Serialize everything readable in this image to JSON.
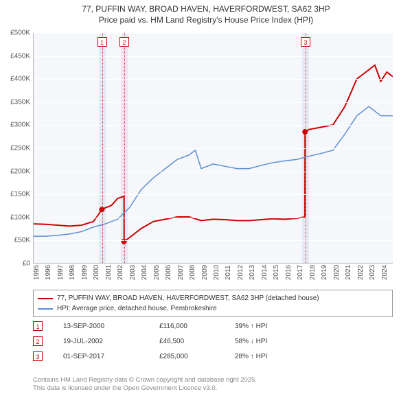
{
  "title": {
    "line1": "77, PUFFIN WAY, BROAD HAVEN, HAVERFORDWEST, SA62 3HP",
    "line2": "Price paid vs. HM Land Registry's House Price Index (HPI)"
  },
  "chart": {
    "type": "line",
    "background_color": "#f6f7fb",
    "grid_color": "#ffffff",
    "axis_color": "#bbbbbb",
    "xlim": [
      1995,
      2025
    ],
    "ylim": [
      0,
      500000
    ],
    "ytick_step": 50000,
    "yticks": [
      {
        "v": 0,
        "label": "£0"
      },
      {
        "v": 50000,
        "label": "£50K"
      },
      {
        "v": 100000,
        "label": "£100K"
      },
      {
        "v": 150000,
        "label": "£150K"
      },
      {
        "v": 200000,
        "label": "£200K"
      },
      {
        "v": 250000,
        "label": "£250K"
      },
      {
        "v": 300000,
        "label": "£300K"
      },
      {
        "v": 350000,
        "label": "£350K"
      },
      {
        "v": 400000,
        "label": "£400K"
      },
      {
        "v": 450000,
        "label": "£450K"
      },
      {
        "v": 500000,
        "label": "£500K"
      }
    ],
    "xticks": [
      1995,
      1996,
      1997,
      1998,
      1999,
      2000,
      2001,
      2002,
      2003,
      2004,
      2005,
      2006,
      2007,
      2008,
      2009,
      2010,
      2011,
      2012,
      2013,
      2014,
      2015,
      2016,
      2017,
      2018,
      2019,
      2020,
      2021,
      2022,
      2023,
      2024
    ],
    "series": [
      {
        "name": "property",
        "label": "77, PUFFIN WAY, BROAD HAVEN, HAVERFORDWEST, SA62 3HP (detached house)",
        "color": "#cc0000",
        "line_width": 2,
        "points": [
          [
            1995,
            85000
          ],
          [
            1996,
            84000
          ],
          [
            1997,
            82000
          ],
          [
            1998,
            80000
          ],
          [
            1999,
            82000
          ],
          [
            2000,
            90000
          ],
          [
            2000.7,
            116000
          ],
          [
            2001,
            120000
          ],
          [
            2001.5,
            125000
          ],
          [
            2002,
            140000
          ],
          [
            2002.55,
            145000
          ],
          [
            2002.56,
            46500
          ],
          [
            2003,
            55000
          ],
          [
            2004,
            75000
          ],
          [
            2005,
            90000
          ],
          [
            2006,
            95000
          ],
          [
            2007,
            100000
          ],
          [
            2008,
            100000
          ],
          [
            2009,
            92000
          ],
          [
            2010,
            95000
          ],
          [
            2011,
            94000
          ],
          [
            2012,
            92000
          ],
          [
            2013,
            92000
          ],
          [
            2014,
            94000
          ],
          [
            2015,
            96000
          ],
          [
            2016,
            95000
          ],
          [
            2017,
            97000
          ],
          [
            2017.66,
            100000
          ],
          [
            2017.67,
            285000
          ],
          [
            2018,
            290000
          ],
          [
            2019,
            295000
          ],
          [
            2020,
            300000
          ],
          [
            2021,
            340000
          ],
          [
            2022,
            400000
          ],
          [
            2023,
            420000
          ],
          [
            2023.5,
            430000
          ],
          [
            2024,
            395000
          ],
          [
            2024.5,
            415000
          ],
          [
            2025,
            405000
          ]
        ]
      },
      {
        "name": "hpi",
        "label": "HPI: Average price, detached house, Pembrokeshire",
        "color": "#5b8fd6",
        "line_width": 1.5,
        "points": [
          [
            1995,
            58000
          ],
          [
            1996,
            58000
          ],
          [
            1997,
            60000
          ],
          [
            1998,
            63000
          ],
          [
            1999,
            68000
          ],
          [
            2000,
            78000
          ],
          [
            2001,
            85000
          ],
          [
            2002,
            95000
          ],
          [
            2003,
            120000
          ],
          [
            2004,
            160000
          ],
          [
            2005,
            185000
          ],
          [
            2006,
            205000
          ],
          [
            2007,
            225000
          ],
          [
            2008,
            235000
          ],
          [
            2008.5,
            245000
          ],
          [
            2009,
            205000
          ],
          [
            2010,
            215000
          ],
          [
            2011,
            210000
          ],
          [
            2012,
            205000
          ],
          [
            2013,
            205000
          ],
          [
            2014,
            212000
          ],
          [
            2015,
            218000
          ],
          [
            2016,
            222000
          ],
          [
            2017,
            225000
          ],
          [
            2018,
            232000
          ],
          [
            2019,
            238000
          ],
          [
            2020,
            245000
          ],
          [
            2021,
            280000
          ],
          [
            2022,
            320000
          ],
          [
            2023,
            340000
          ],
          [
            2024,
            320000
          ],
          [
            2025,
            320000
          ]
        ]
      }
    ],
    "markers": [
      {
        "id": "1",
        "x": 2000.7,
        "y": 116000,
        "band_color": "#dbe2ef"
      },
      {
        "id": "2",
        "x": 2002.55,
        "y": 46500,
        "band_color": "#dbe2ef"
      },
      {
        "id": "3",
        "x": 2017.67,
        "y": 285000,
        "band_color": "#dbe2ef"
      }
    ],
    "marker_dot_color": "#cc0000",
    "marker_line_color": "#d33333"
  },
  "legend": {
    "items": [
      {
        "color": "#cc0000",
        "label": "77, PUFFIN WAY, BROAD HAVEN, HAVERFORDWEST, SA62 3HP (detached house)"
      },
      {
        "color": "#5b8fd6",
        "label": "HPI: Average price, detached house, Pembrokeshire"
      }
    ]
  },
  "footnotes": [
    {
      "id": "1",
      "date": "13-SEP-2000",
      "price": "£116,000",
      "pct": "39% ↑ HPI"
    },
    {
      "id": "2",
      "date": "19-JUL-2002",
      "price": "£46,500",
      "pct": "58% ↓ HPI"
    },
    {
      "id": "3",
      "date": "01-SEP-2017",
      "price": "£285,000",
      "pct": "28% ↑ HPI"
    }
  ],
  "attribution": {
    "line1": "Contains HM Land Registry data © Crown copyright and database right 2025.",
    "line2": "This data is licensed under the Open Government Licence v3.0."
  }
}
